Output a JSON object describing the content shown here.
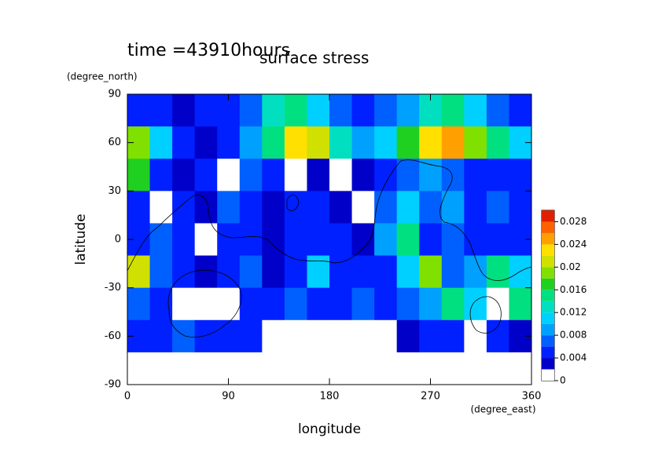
{
  "chart_data": {
    "type": "contour-map",
    "title": "surface stress",
    "subtitle": "time =43910hours",
    "ylabel_unit": "(degree_north)",
    "ylabel": "latitude",
    "xlabel": "longitude",
    "xlabel_unit": "(degree_east)",
    "xlim": [
      0,
      360
    ],
    "xticks": [
      0,
      90,
      180,
      270,
      360
    ],
    "ylim": [
      -90,
      90
    ],
    "yticks": [
      -90,
      -60,
      -30,
      0,
      30,
      60,
      90
    ],
    "x": [
      10,
      30,
      50,
      70,
      90,
      110,
      130,
      150,
      170,
      190,
      210,
      230,
      250,
      270,
      290,
      310,
      330,
      350
    ],
    "y": [
      80,
      60,
      40,
      20,
      0,
      -20,
      -40,
      -60,
      -80
    ],
    "z": [
      [
        0.005,
        0.004,
        0.003,
        0.004,
        0.005,
        0.006,
        0.012,
        0.014,
        0.01,
        0.006,
        0.005,
        0.006,
        0.008,
        0.012,
        0.014,
        0.01,
        0.006,
        0.005
      ],
      [
        0.018,
        0.01,
        0.004,
        0.003,
        0.004,
        0.008,
        0.014,
        0.022,
        0.02,
        0.012,
        0.008,
        0.01,
        0.016,
        0.022,
        0.024,
        0.018,
        0.014,
        0.01
      ],
      [
        0.016,
        0.004,
        0.002,
        0.004,
        0,
        0.006,
        0.004,
        0,
        0.003,
        0,
        0.003,
        0.004,
        0.006,
        0.008,
        0.006,
        0.004,
        0.005,
        0.004
      ],
      [
        0.004,
        0,
        0.004,
        0.002,
        0.006,
        0.004,
        0.003,
        0.005,
        0.004,
        0.003,
        0,
        0.006,
        0.01,
        0.006,
        0.008,
        0.004,
        0.006,
        0.005
      ],
      [
        0.004,
        0.006,
        0.004,
        0,
        0.004,
        0.005,
        0.003,
        0.004,
        0.005,
        0.004,
        0.003,
        0.008,
        0.014,
        0.004,
        0.006,
        0.004,
        0.005,
        0.004
      ],
      [
        0.02,
        0.006,
        0.004,
        0.002,
        0.004,
        0.006,
        0.003,
        0.004,
        0.01,
        0.004,
        0.005,
        0.004,
        0.01,
        0.018,
        0.006,
        0.008,
        0.014,
        0.01
      ],
      [
        0.006,
        0.004,
        0,
        0,
        0,
        0.004,
        0.005,
        0.006,
        0.004,
        0.005,
        0.006,
        0.004,
        0.006,
        0.008,
        0.014,
        0.01,
        0,
        0.014
      ],
      [
        0.004,
        0.004,
        0.006,
        0.005,
        0.005,
        0.004,
        0,
        0,
        0,
        0,
        0,
        0,
        0.002,
        0.004,
        0.004,
        0,
        0.004,
        0.003
      ],
      [
        0,
        0,
        0,
        0,
        0,
        0,
        0,
        0,
        0,
        0,
        0,
        0,
        0,
        0,
        0,
        0,
        0,
        0
      ]
    ],
    "clim": [
      0,
      0.03
    ],
    "cticks": [
      0,
      0.004,
      0.008,
      0.012,
      0.016,
      0.02,
      0.024,
      0.028
    ],
    "colors": [
      "#ffffff",
      "#0000c8",
      "#0020ff",
      "#0060ff",
      "#00a0ff",
      "#00d0ff",
      "#00e0c0",
      "#00e080",
      "#20d020",
      "#80e000",
      "#d0e000",
      "#ffe000",
      "#ffa000",
      "#ff6000",
      "#e02000"
    ]
  }
}
